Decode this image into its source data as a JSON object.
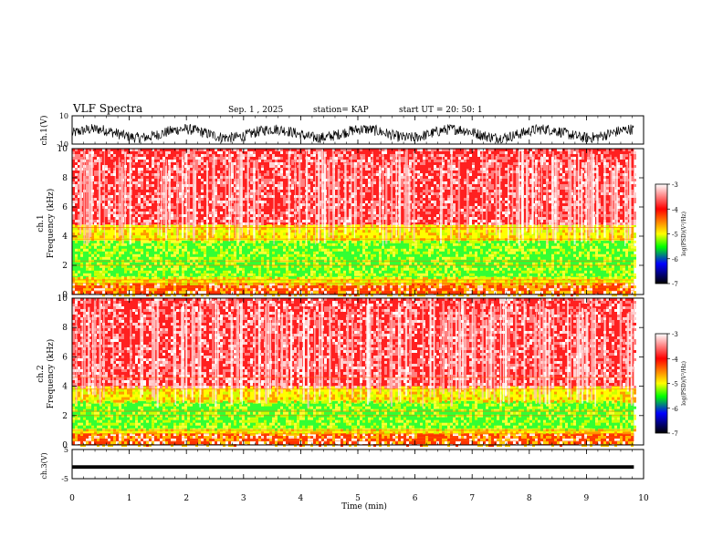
{
  "header": {
    "title": "VLF Spectra",
    "date": "Sep. 1 , 2025",
    "station": "station= KAP",
    "start_ut": "start UT =  20: 50: 1"
  },
  "chart_data": {
    "type": "heatmap",
    "time_axis": {
      "label": "Time (min)",
      "ticks": [
        0,
        1,
        2,
        3,
        4,
        5,
        6,
        7,
        8,
        9,
        10
      ],
      "range": [
        0,
        10
      ],
      "data_end": 9.83
    },
    "ch1_waveform": {
      "type": "line",
      "ylabel": "ch.1(V)",
      "ylim": [
        -10,
        10
      ],
      "ticks": [
        "10",
        "-10"
      ],
      "mean": -2.5,
      "amplitude": 5.5
    },
    "ch1_spectrogram": {
      "type": "heatmap",
      "ylabel_channel": "ch.1",
      "ylabel": "Frequency (kHz)",
      "ylim": [
        0,
        10
      ],
      "yticks": [
        "0",
        "2",
        "4",
        "6",
        "8",
        "10"
      ],
      "bands_khz": [
        {
          "from": 0.0,
          "to": 0.8,
          "level": "red-yellow"
        },
        {
          "from": 0.8,
          "to": 1.2,
          "level": "yellow"
        },
        {
          "from": 1.2,
          "to": 3.7,
          "level": "green"
        },
        {
          "from": 3.7,
          "to": 4.8,
          "level": "yellow"
        },
        {
          "from": 4.8,
          "to": 10.0,
          "level": "red"
        }
      ]
    },
    "ch2_spectrogram": {
      "type": "heatmap",
      "ylabel_channel": "ch.2",
      "ylabel": "Frequency (kHz)",
      "ylim": [
        0,
        10
      ],
      "yticks": [
        "0",
        "2",
        "4",
        "6",
        "8",
        "10"
      ],
      "bands_khz": [
        {
          "from": 0.0,
          "to": 0.8,
          "level": "red-yellow"
        },
        {
          "from": 0.8,
          "to": 1.1,
          "level": "yellow"
        },
        {
          "from": 1.1,
          "to": 3.0,
          "level": "green"
        },
        {
          "from": 3.0,
          "to": 4.0,
          "level": "yellow"
        },
        {
          "from": 4.0,
          "to": 10.0,
          "level": "red"
        }
      ]
    },
    "ch3_waveform": {
      "type": "line",
      "ylabel": "ch.3(V)",
      "ylim": [
        -5,
        5
      ],
      "ticks": [
        "5",
        "-5"
      ],
      "band_low": -1.6,
      "band_high": -0.4
    },
    "colorbar": {
      "label": "log(PSD)(V²/Hz)",
      "range": [
        -7,
        -3
      ],
      "ticks": [
        "-3",
        "-4",
        "-5",
        "-6",
        "-7"
      ],
      "colors": [
        "#ffffff",
        "#ff0000",
        "#ffff00",
        "#00ff00",
        "#0000ff",
        "#000000"
      ]
    }
  }
}
